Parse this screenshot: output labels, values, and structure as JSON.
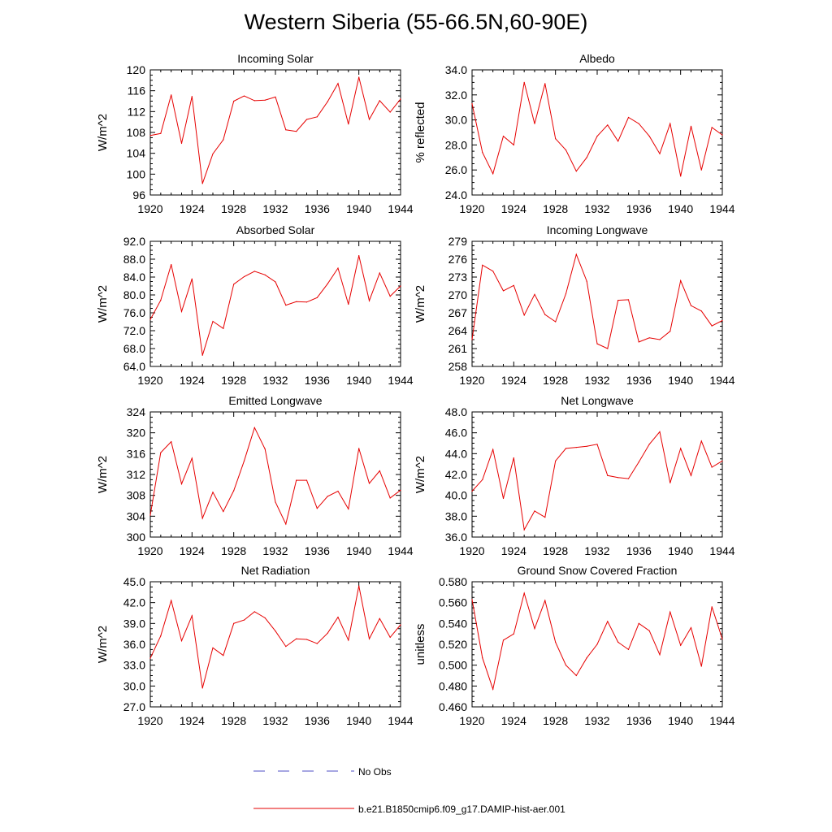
{
  "title": "Western Siberia (55-66.5N,60-90E)",
  "legend": {
    "items": [
      {
        "label": "No Obs",
        "color": "#4f4fc4",
        "style": "dashed"
      },
      {
        "label": "b.e21.B1850cmip6.f09_g17.DAMIP-hist-aer.001",
        "color": "#e60000",
        "style": "solid"
      }
    ]
  },
  "chart_data": [
    {
      "type": "line",
      "title": "Incoming Solar",
      "ylabel": "W/m^2",
      "xlim": [
        1920,
        1944
      ],
      "ylim": [
        96,
        120
      ],
      "xticks": [
        "1920",
        "1924",
        "1928",
        "1932",
        "1936",
        "1940",
        "1944"
      ],
      "yticks": [
        "96",
        "100",
        "104",
        "108",
        "112",
        "116",
        "120"
      ],
      "series": [
        {
          "color": "#e60000",
          "x": [
            1920,
            1921,
            1922,
            1923,
            1924,
            1925,
            1926,
            1927,
            1928,
            1929,
            1930,
            1931,
            1932,
            1933,
            1934,
            1935,
            1936,
            1937,
            1938,
            1939,
            1940,
            1941,
            1942,
            1943,
            1944
          ],
          "y": [
            107.4,
            107.8,
            115.2,
            105.9,
            114.9,
            98.2,
            103.9,
            106.6,
            114.0,
            115.0,
            114.1,
            114.2,
            114.8,
            108.5,
            108.2,
            110.5,
            111.0,
            113.9,
            117.4,
            109.6,
            118.6,
            110.5,
            114.1,
            111.9,
            114.4
          ]
        }
      ]
    },
    {
      "type": "line",
      "title": "Albedo",
      "ylabel": "% reflected",
      "xlim": [
        1920,
        1944
      ],
      "ylim": [
        24,
        34
      ],
      "xticks": [
        "1920",
        "1924",
        "1928",
        "1932",
        "1936",
        "1940",
        "1944"
      ],
      "yticks": [
        "24.0",
        "26.0",
        "28.0",
        "30.0",
        "32.0",
        "34.0"
      ],
      "series": [
        {
          "color": "#e60000",
          "x": [
            1920,
            1921,
            1922,
            1923,
            1924,
            1925,
            1926,
            1927,
            1928,
            1929,
            1930,
            1931,
            1932,
            1933,
            1934,
            1935,
            1936,
            1937,
            1938,
            1939,
            1940,
            1941,
            1942,
            1943,
            1944
          ],
          "y": [
            31.3,
            27.4,
            25.7,
            28.7,
            28.0,
            33.0,
            29.7,
            32.9,
            28.5,
            27.6,
            25.9,
            27.0,
            28.7,
            29.6,
            28.3,
            30.2,
            29.7,
            28.7,
            27.3,
            29.7,
            25.5,
            29.5,
            26.0,
            29.4,
            28.8
          ]
        }
      ]
    },
    {
      "type": "line",
      "title": "Absorbed Solar",
      "ylabel": "W/m^2",
      "xlim": [
        1920,
        1944
      ],
      "ylim": [
        64,
        92
      ],
      "xticks": [
        "1920",
        "1924",
        "1928",
        "1932",
        "1936",
        "1940",
        "1944"
      ],
      "yticks": [
        "64.0",
        "68.0",
        "72.0",
        "76.0",
        "80.0",
        "84.0",
        "88.0",
        "92.0"
      ],
      "series": [
        {
          "color": "#e60000",
          "x": [
            1920,
            1921,
            1922,
            1923,
            1924,
            1925,
            1926,
            1927,
            1928,
            1929,
            1930,
            1931,
            1932,
            1933,
            1934,
            1935,
            1936,
            1937,
            1938,
            1939,
            1940,
            1941,
            1942,
            1943,
            1944
          ],
          "y": [
            74.5,
            78.8,
            86.8,
            76.3,
            83.6,
            66.5,
            74.1,
            72.5,
            82.4,
            84.1,
            85.3,
            84.5,
            82.9,
            77.7,
            78.5,
            78.4,
            79.4,
            82.5,
            86.0,
            77.9,
            88.8,
            78.7,
            84.9,
            79.7,
            82.0
          ]
        }
      ]
    },
    {
      "type": "line",
      "title": "Incoming Longwave",
      "ylabel": "W/m^2",
      "xlim": [
        1920,
        1944
      ],
      "ylim": [
        258,
        279
      ],
      "xticks": [
        "1920",
        "1924",
        "1928",
        "1932",
        "1936",
        "1940",
        "1944"
      ],
      "yticks": [
        "258",
        "261",
        "264",
        "267",
        "270",
        "273",
        "276",
        "279"
      ],
      "series": [
        {
          "color": "#e60000",
          "x": [
            1920,
            1921,
            1922,
            1923,
            1924,
            1925,
            1926,
            1927,
            1928,
            1929,
            1930,
            1931,
            1932,
            1933,
            1934,
            1935,
            1936,
            1937,
            1938,
            1939,
            1940,
            1941,
            1942,
            1943,
            1944
          ],
          "y": [
            262.5,
            275.0,
            274.0,
            270.7,
            271.6,
            266.6,
            270.1,
            266.7,
            265.5,
            270.2,
            276.8,
            272.3,
            261.8,
            261.0,
            269.1,
            269.2,
            262.1,
            262.8,
            262.5,
            263.9,
            272.4,
            268.2,
            267.3,
            264.8,
            265.7
          ]
        }
      ]
    },
    {
      "type": "line",
      "title": "Emitted Longwave",
      "ylabel": "W/m^2",
      "xlim": [
        1920,
        1944
      ],
      "ylim": [
        300,
        324
      ],
      "xticks": [
        "1920",
        "1924",
        "1928",
        "1932",
        "1936",
        "1940",
        "1944"
      ],
      "yticks": [
        "300",
        "304",
        "308",
        "312",
        "316",
        "320",
        "324"
      ],
      "series": [
        {
          "color": "#e60000",
          "x": [
            1920,
            1921,
            1922,
            1923,
            1924,
            1925,
            1926,
            1927,
            1928,
            1929,
            1930,
            1931,
            1932,
            1933,
            1934,
            1935,
            1936,
            1937,
            1938,
            1939,
            1940,
            1941,
            1942,
            1943,
            1944
          ],
          "y": [
            304.2,
            316.2,
            318.3,
            310.2,
            315.1,
            303.6,
            308.6,
            304.9,
            308.9,
            314.6,
            321.0,
            316.9,
            306.7,
            302.5,
            310.9,
            310.9,
            305.5,
            307.8,
            308.8,
            305.4,
            317.0,
            310.3,
            312.7,
            307.5,
            309.0
          ]
        }
      ]
    },
    {
      "type": "line",
      "title": "Net Longwave",
      "ylabel": "W/m^2",
      "xlim": [
        1920,
        1944
      ],
      "ylim": [
        36,
        48
      ],
      "xticks": [
        "1920",
        "1924",
        "1928",
        "1932",
        "1936",
        "1940",
        "1944"
      ],
      "yticks": [
        "36.0",
        "38.0",
        "40.0",
        "42.0",
        "44.0",
        "46.0",
        "48.0"
      ],
      "series": [
        {
          "color": "#e60000",
          "x": [
            1920,
            1921,
            1922,
            1923,
            1924,
            1925,
            1926,
            1927,
            1928,
            1929,
            1930,
            1931,
            1932,
            1933,
            1934,
            1935,
            1936,
            1937,
            1938,
            1939,
            1940,
            1941,
            1942,
            1943,
            1944
          ],
          "y": [
            40.4,
            41.5,
            44.4,
            39.7,
            43.6,
            36.7,
            38.5,
            37.9,
            43.3,
            44.5,
            44.6,
            44.7,
            44.9,
            41.9,
            41.7,
            41.6,
            43.2,
            44.9,
            46.1,
            41.2,
            44.5,
            41.9,
            45.2,
            42.7,
            43.3
          ]
        }
      ]
    },
    {
      "type": "line",
      "title": "Net Radiation",
      "ylabel": "W/m^2",
      "xlim": [
        1920,
        1944
      ],
      "ylim": [
        27,
        45
      ],
      "xticks": [
        "1920",
        "1924",
        "1928",
        "1932",
        "1936",
        "1940",
        "1944"
      ],
      "yticks": [
        "27.0",
        "30.0",
        "33.0",
        "36.0",
        "39.0",
        "42.0",
        "45.0"
      ],
      "series": [
        {
          "color": "#e60000",
          "x": [
            1920,
            1921,
            1922,
            1923,
            1924,
            1925,
            1926,
            1927,
            1928,
            1929,
            1930,
            1931,
            1932,
            1933,
            1934,
            1935,
            1936,
            1937,
            1938,
            1939,
            1940,
            1941,
            1942,
            1943,
            1944
          ],
          "y": [
            34.0,
            37.2,
            42.3,
            36.5,
            40.1,
            29.7,
            35.5,
            34.4,
            39.0,
            39.5,
            40.7,
            39.8,
            37.9,
            35.7,
            36.8,
            36.7,
            36.1,
            37.6,
            39.9,
            36.6,
            44.4,
            36.8,
            39.7,
            37.0,
            38.8
          ]
        }
      ]
    },
    {
      "type": "line",
      "title": "Ground Snow Covered Fraction",
      "ylabel": "unitless",
      "xlim": [
        1920,
        1944
      ],
      "ylim": [
        0.46,
        0.58
      ],
      "xticks": [
        "1920",
        "1924",
        "1928",
        "1932",
        "1936",
        "1940",
        "1944"
      ],
      "yticks": [
        "0.460",
        "0.480",
        "0.500",
        "0.520",
        "0.540",
        "0.560",
        "0.580"
      ],
      "series": [
        {
          "color": "#e60000",
          "x": [
            1920,
            1921,
            1922,
            1923,
            1924,
            1925,
            1926,
            1927,
            1928,
            1929,
            1930,
            1931,
            1932,
            1933,
            1934,
            1935,
            1936,
            1937,
            1938,
            1939,
            1940,
            1941,
            1942,
            1943,
            1944
          ],
          "y": [
            0.563,
            0.507,
            0.477,
            0.524,
            0.53,
            0.569,
            0.535,
            0.562,
            0.522,
            0.5,
            0.49,
            0.507,
            0.52,
            0.542,
            0.522,
            0.515,
            0.54,
            0.533,
            0.51,
            0.551,
            0.519,
            0.536,
            0.499,
            0.556,
            0.525
          ]
        }
      ]
    }
  ]
}
